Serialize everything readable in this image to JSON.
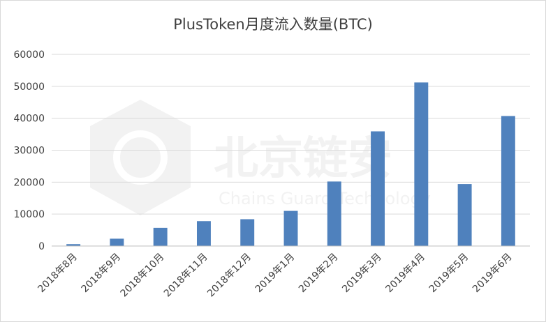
{
  "watermark": {
    "name_cn": "北京链安",
    "name_en": "Chains Guard Technology"
  },
  "chart_data": {
    "type": "bar",
    "title": "PlusToken月度流入数量(BTC)",
    "xlabel": "",
    "ylabel": "",
    "categories": [
      "2018年8月",
      "2018年9月",
      "2018年10月",
      "2018年11月",
      "2018年12月",
      "2019年1月",
      "2019年2月",
      "2019年3月",
      "2019年4月",
      "2019年5月",
      "2019年6月"
    ],
    "values": [
      600,
      2300,
      5700,
      7800,
      8400,
      11000,
      20200,
      35900,
      51200,
      19400,
      40700
    ],
    "ylim": [
      0,
      60000
    ],
    "yticks": [
      0,
      10000,
      20000,
      30000,
      40000,
      50000,
      60000
    ],
    "grid": true,
    "legend": "none",
    "bar_color": "#4f81bd"
  }
}
